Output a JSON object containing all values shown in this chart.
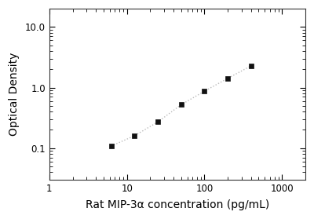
{
  "x_values": [
    6.25,
    12.5,
    25,
    50,
    100,
    200,
    400
  ],
  "y_values": [
    0.108,
    0.16,
    0.27,
    0.52,
    0.87,
    1.42,
    2.28
  ],
  "xlabel": "Rat MIP-3α concentration (pg/mL)",
  "ylabel": "Optical Density",
  "xlim": [
    1,
    2000
  ],
  "ylim": [
    0.03,
    20
  ],
  "line_color": "#bbbbbb",
  "marker_color": "#111111",
  "marker": "s",
  "marker_size": 4.5,
  "line_style": ":",
  "line_width": 1.0,
  "background_color": "#ffffff",
  "x_ticks": [
    1,
    10,
    100,
    1000
  ],
  "y_ticks": [
    0.1,
    1,
    10
  ],
  "xlabel_fontsize": 10,
  "ylabel_fontsize": 10,
  "tick_labelsize": 8.5
}
